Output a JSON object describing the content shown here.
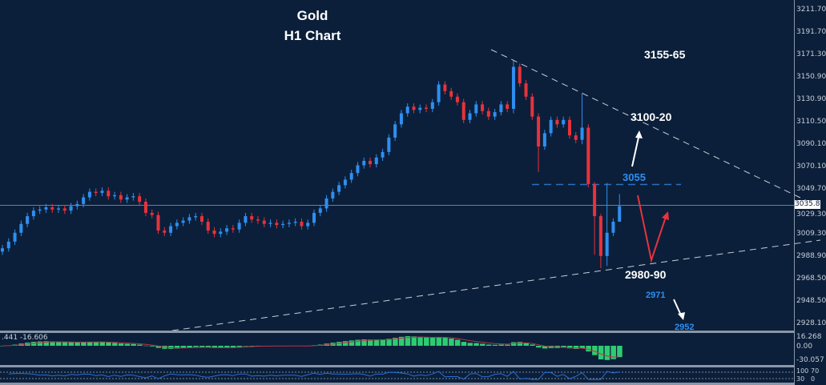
{
  "title": {
    "line1": "Gold",
    "line2": "H1 Chart"
  },
  "chart_data": {
    "type": "candlestick",
    "instrument": "Gold",
    "timeframe": "H1",
    "ylim": [
      2918,
      3222
    ],
    "y_ticks": [
      "3211.70",
      "3191.70",
      "3171.30",
      "3150.90",
      "3130.90",
      "3110.50",
      "3090.10",
      "3070.10",
      "3049.70",
      "3029.30",
      "3009.30",
      "2988.90",
      "2968.50",
      "2948.50",
      "2928.10"
    ],
    "y_tick_values": [
      3211.7,
      3191.7,
      3171.3,
      3150.9,
      3130.9,
      3110.5,
      3090.1,
      3070.1,
      3049.7,
      3029.3,
      3009.3,
      2988.9,
      2968.5,
      2948.5,
      2928.1
    ],
    "current_price": "3035.81",
    "closes": [
      2996,
      3002,
      3010,
      3018,
      3025,
      3030,
      3031,
      3033,
      3031,
      3032,
      3030,
      3034,
      3036,
      3042,
      3047,
      3046,
      3048,
      3043,
      3044,
      3040,
      3042,
      3043,
      3038,
      3028,
      3026,
      3012,
      3010,
      3016,
      3019,
      3021,
      3024,
      3025,
      3020,
      3012,
      3009,
      3011,
      3014,
      3013,
      3019,
      3025,
      3022,
      3021,
      3018,
      3019,
      3017,
      3018,
      3019,
      3020,
      3016,
      3019,
      3028,
      3032,
      3041,
      3047,
      3053,
      3058,
      3064,
      3071,
      3075,
      3072,
      3078,
      3083,
      3096,
      3108,
      3118,
      3124,
      3121,
      3123,
      3122,
      3128,
      3144,
      3138,
      3133,
      3128,
      3112,
      3118,
      3126,
      3120,
      3115,
      3119,
      3126,
      3122,
      3160,
      3145,
      3133,
      3115,
      3088,
      3100,
      3112,
      3108,
      3112,
      3098,
      3094,
      3105,
      3054,
      3025,
      2989,
      3010,
      3020,
      3034
    ],
    "wick_overrides": {
      "82": [
        3118,
        3166
      ],
      "86": [
        3065,
        3118
      ],
      "93": [
        3090,
        3136
      ],
      "95": [
        2990,
        3056
      ],
      "96": [
        2978,
        3027
      ],
      "97": [
        2980,
        3055
      ],
      "99": [
        3020,
        3045
      ]
    },
    "colors": {
      "up": "#2e8ff0",
      "down": "#e8323c",
      "background": "#0b1f3a"
    },
    "annotations": {
      "target_high": "3155-65",
      "target_mid": "3100-20",
      "level_3055": "3055",
      "support": "2980-90",
      "level_2971": "2971",
      "level_2952": "2952"
    },
    "macd": {
      "labels": [
        "16.268",
        "0.00",
        "-30.057"
      ],
      "readout": ".441 -16.606",
      "colors": {
        "hist": "#2ecc71",
        "signal": "#c0304a"
      }
    },
    "rsi": {
      "labels": [
        "100",
        "70",
        "30",
        "0"
      ],
      "color": "#2a6fd6"
    }
  }
}
